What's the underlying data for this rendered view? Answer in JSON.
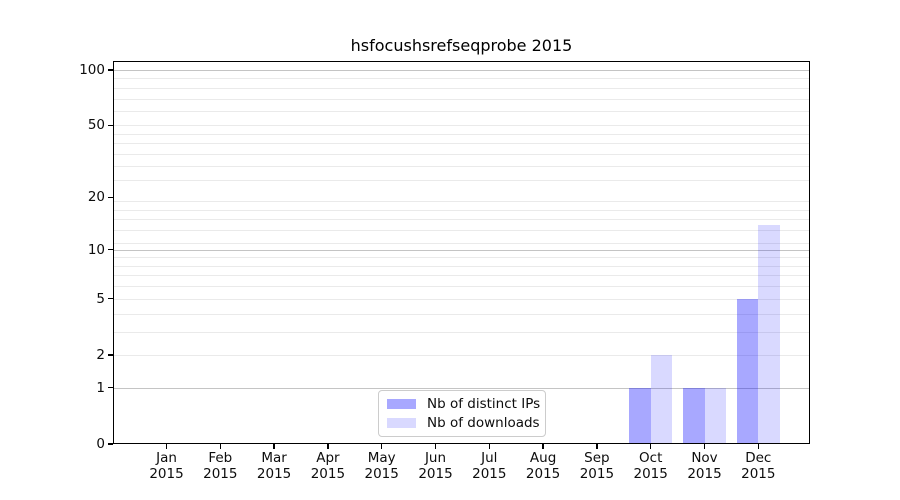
{
  "title": "hsfocushsrefseqprobe 2015",
  "colors": {
    "bar_distinct_ips": "rgba(0,0,255,0.34)",
    "bar_downloads": "rgba(0,0,255,0.15)",
    "grid_major": "#c4c4c4",
    "grid_minor": "#eaeaea",
    "axis": "#000000",
    "text": "#0d0d0d",
    "legend_border": "#cccccc",
    "background": "#ffffff"
  },
  "chart_data": {
    "type": "bar",
    "title": "hsfocushsrefseqprobe 2015",
    "months": [
      "Jan",
      "Feb",
      "Mar",
      "Apr",
      "May",
      "Jun",
      "Jul",
      "Aug",
      "Sep",
      "Oct",
      "Nov",
      "Dec"
    ],
    "year": "2015",
    "series": [
      {
        "name": "Nb of distinct IPs",
        "color_key": "bar_distinct_ips",
        "values": [
          0,
          0,
          0,
          0,
          0,
          0,
          0,
          0,
          0,
          1,
          1,
          5
        ]
      },
      {
        "name": "Nb of downloads",
        "color_key": "bar_downloads",
        "values": [
          0,
          0,
          0,
          0,
          0,
          0,
          0,
          0,
          0,
          2,
          1,
          14
        ]
      }
    ],
    "y_scale": "log1p",
    "ylim": [
      0,
      111.8
    ],
    "y_ticks": [
      0,
      1,
      2,
      5,
      10,
      20,
      50,
      100
    ],
    "y_tick_labels": [
      "0",
      "1",
      "2",
      "5",
      "10",
      "20",
      "50",
      "100"
    ],
    "grid_major_values": [
      1,
      10,
      100
    ],
    "grid_minor_values": [
      2,
      3,
      4,
      5,
      6,
      7,
      8,
      9,
      11,
      13,
      15,
      17,
      19,
      25,
      30,
      35,
      40,
      45,
      50,
      60,
      70,
      80,
      90
    ],
    "grid": "on",
    "legend_position": "bottom-center"
  }
}
